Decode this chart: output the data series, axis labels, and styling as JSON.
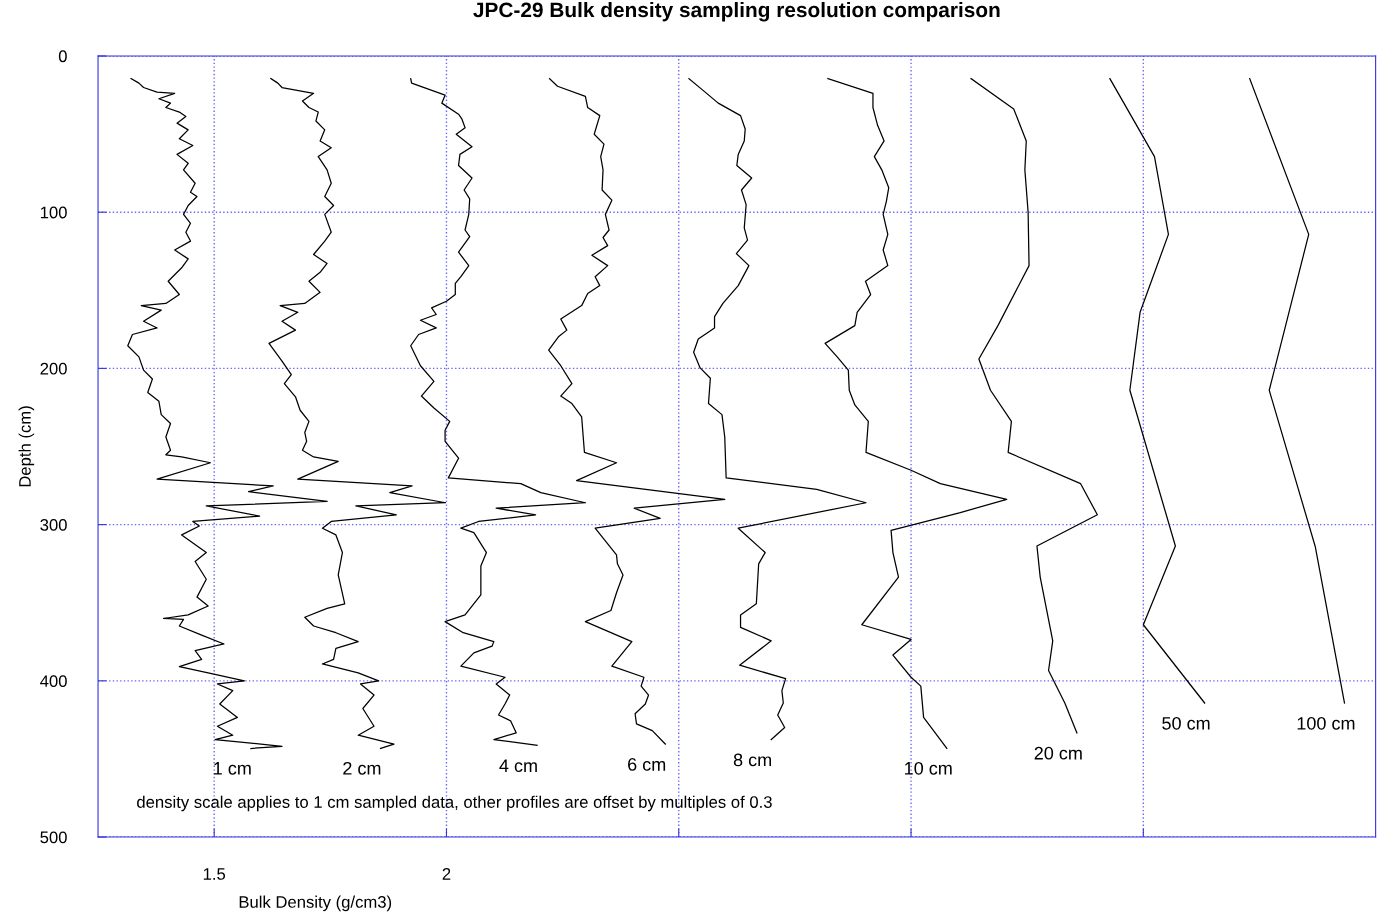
{
  "chart_data": {
    "type": "line",
    "title": "JPC-29 Bulk density sampling resolution comparison",
    "xlabel": "Bulk Density (g/cm3)",
    "ylabel": "Depth (cm)",
    "xlim": [
      1.25,
      4.0
    ],
    "xticks": [
      1.5,
      2,
      {
        "value": 2.5,
        "label": null
      },
      {
        "value": 3,
        "label": null
      },
      {
        "value": 3.5,
        "label": null
      }
    ],
    "ylim": [
      500,
      0
    ],
    "yticks": [
      0,
      100,
      200,
      300,
      400,
      500
    ],
    "grid": true,
    "legend": false,
    "marker": "none",
    "line_style": "solid",
    "annotations": [
      "density scale applies to 1 cm sampled data, other profiles are offset by multiples of 0.3"
    ],
    "series": [
      {
        "name": "1 cm",
        "color": "#000000",
        "x": [
          1.321,
          1.338,
          1.348,
          1.377,
          1.415,
          1.381,
          1.406,
          1.396,
          1.425,
          1.439,
          1.42,
          1.444,
          1.425,
          1.454,
          1.42,
          1.444,
          1.434,
          1.459,
          1.449,
          1.463,
          1.444,
          1.434,
          1.449,
          1.439,
          1.449,
          1.415,
          1.444,
          1.43,
          1.401,
          1.425,
          1.396,
          1.343,
          1.386,
          1.348,
          1.377,
          1.324,
          1.314,
          1.338,
          1.348,
          1.367,
          1.357,
          1.381,
          1.386,
          1.406,
          1.396,
          1.406,
          1.396,
          1.43,
          1.492,
          1.377,
          1.627,
          1.574,
          1.743,
          1.483,
          1.598,
          1.454,
          1.468,
          1.43,
          1.483,
          1.459,
          1.483,
          1.463,
          1.487,
          1.444,
          1.391,
          1.434,
          1.425,
          1.473,
          1.521,
          1.459,
          1.473,
          1.425,
          1.487,
          1.565,
          1.507,
          1.54,
          1.512,
          1.55,
          1.507,
          1.54,
          1.502,
          1.646,
          1.579
        ],
        "values": [
          14.5,
          17.4,
          20.2,
          23.1,
          23.9,
          27.4,
          30.2,
          33.0,
          35.9,
          38.7,
          43.0,
          47.3,
          53.0,
          57.3,
          63.0,
          68.7,
          72.9,
          81.5,
          87.2,
          90.0,
          95.7,
          101.4,
          107.1,
          112.8,
          118.5,
          124.2,
          129.9,
          135.6,
          144.2,
          152.7,
          158.4,
          159.8,
          162.7,
          169.8,
          174.1,
          178.3,
          185.5,
          192.6,
          201.1,
          206.8,
          215.4,
          221.1,
          229.6,
          235.3,
          243.9,
          252.4,
          255.3,
          256.7,
          260.4,
          270.9,
          275.2,
          278.9,
          285.2,
          288.0,
          294.6,
          298.0,
          300.9,
          306.6,
          317.9,
          323.6,
          335.0,
          346.4,
          352.1,
          357.8,
          360.1,
          360.7,
          364.9,
          370.7,
          376.4,
          380.6,
          386.3,
          390.9,
          394.9,
          400.0,
          402.0,
          406.3,
          414.8,
          423.4,
          429.1,
          434.8,
          437.6,
          441.9,
          443.3
        ]
      },
      {
        "name": "2 cm",
        "color": "#000000",
        "x": [
          1.622,
          1.637,
          1.646,
          1.714,
          1.69,
          1.704,
          1.724,
          1.719,
          1.738,
          1.728,
          1.752,
          1.724,
          1.743,
          1.752,
          1.738,
          1.757,
          1.738,
          1.752,
          1.738,
          1.714,
          1.743,
          1.728,
          1.704,
          1.728,
          1.695,
          1.642,
          1.68,
          1.646,
          1.675,
          1.618,
          1.646,
          1.666,
          1.651,
          1.675,
          1.685,
          1.704,
          1.695,
          1.699,
          1.69,
          1.714,
          1.767,
          1.68,
          1.926,
          1.878,
          1.998,
          1.805,
          1.892,
          1.752,
          1.733,
          1.762,
          1.776,
          1.767,
          1.781,
          1.743,
          1.695,
          1.714,
          1.762,
          1.81,
          1.762,
          1.757,
          1.733,
          1.81,
          1.854,
          1.815,
          1.844,
          1.82,
          1.844,
          1.81,
          1.887,
          1.858
        ],
        "values": [
          14.5,
          17.4,
          20.2,
          23.9,
          28.8,
          33.0,
          35.9,
          41.6,
          47.3,
          54.4,
          58.7,
          64.4,
          72.9,
          81.5,
          90.0,
          95.7,
          101.4,
          112.8,
          118.5,
          127.1,
          132.8,
          138.5,
          144.2,
          151.3,
          158.4,
          159.8,
          164.1,
          169.8,
          175.5,
          184.0,
          195.4,
          204.0,
          209.7,
          218.2,
          226.8,
          233.9,
          241.0,
          246.7,
          252.4,
          256.7,
          259.5,
          270.9,
          275.2,
          279.5,
          286.0,
          288.0,
          293.7,
          298.0,
          302.3,
          306.6,
          317.9,
          332.2,
          350.7,
          353.6,
          359.3,
          364.9,
          369.2,
          374.9,
          379.2,
          386.3,
          389.2,
          394.9,
          400.0,
          402.0,
          409.1,
          417.7,
          429.1,
          434.8,
          440.5,
          443.3
        ]
      },
      {
        "name": "4 cm",
        "color": "#000000",
        "x": [
          1.923,
          1.925,
          1.997,
          1.99,
          2.026,
          2.033,
          2.04,
          2.021,
          2.055,
          2.029,
          2.026,
          2.055,
          2.038,
          2.05,
          2.048,
          2.04,
          2.05,
          2.026,
          2.048,
          2.031,
          2.019,
          2.019,
          2.0,
          1.968,
          1.978,
          1.944,
          1.978,
          1.94,
          1.923,
          1.944,
          1.973,
          1.946,
          1.973,
          2.007,
          1.997,
          1.997,
          2.026,
          2.004,
          2.16,
          2.203,
          2.299,
          2.107,
          2.192,
          2.069,
          2.031,
          2.059,
          2.086,
          2.074,
          2.074,
          2.04,
          1.997,
          2.036,
          2.102,
          2.098,
          2.059,
          2.031,
          2.126,
          2.107,
          2.136,
          2.126,
          2.112,
          2.138,
          2.15,
          2.102,
          2.195
        ],
        "values": [
          14.5,
          17.4,
          25.1,
          30.2,
          37.3,
          40.2,
          45.9,
          50.1,
          58.1,
          63.0,
          70.1,
          78.1,
          85.8,
          91.5,
          101.4,
          111.4,
          115.7,
          125.6,
          134.2,
          141.3,
          145.6,
          152.7,
          157.0,
          161.3,
          165.5,
          169.2,
          174.1,
          178.3,
          185.5,
          198.3,
          208.3,
          217.7,
          225.4,
          233.9,
          239.6,
          246.7,
          257.5,
          270.1,
          273.8,
          279.5,
          286.0,
          289.5,
          293.7,
          298.0,
          302.3,
          305.1,
          317.9,
          326.5,
          345.0,
          357.8,
          362.1,
          369.2,
          374.9,
          377.8,
          382.1,
          390.6,
          397.7,
          402.0,
          409.1,
          414.8,
          421.9,
          425.6,
          433.3,
          437.6,
          441.3
        ]
      },
      {
        "name": "6 cm",
        "color": "#000000",
        "x": [
          2.222,
          2.239,
          2.299,
          2.304,
          2.33,
          2.318,
          2.339,
          2.332,
          2.337,
          2.335,
          2.356,
          2.342,
          2.35,
          2.337,
          2.347,
          2.313,
          2.347,
          2.32,
          2.33,
          2.304,
          2.291,
          2.246,
          2.259,
          2.241,
          2.22,
          2.246,
          2.27,
          2.246,
          2.27,
          2.291,
          2.297,
          2.366,
          2.28,
          2.599,
          2.404,
          2.46,
          2.32,
          2.366,
          2.368,
          2.38,
          2.366,
          2.354,
          2.299,
          2.399,
          2.356,
          2.425,
          2.419,
          2.435,
          2.428,
          2.406,
          2.409,
          2.443,
          2.471
        ],
        "values": [
          14.5,
          19.4,
          25.9,
          33.0,
          38.2,
          50.1,
          56.4,
          64.4,
          72.9,
          85.8,
          92.3,
          101.4,
          111.4,
          116.2,
          121.4,
          127.6,
          134.2,
          141.3,
          147.0,
          152.1,
          159.8,
          168.4,
          175.5,
          179.8,
          188.3,
          198.3,
          209.7,
          217.7,
          222.5,
          231.1,
          253.8,
          260.4,
          271.8,
          283.8,
          289.5,
          296.0,
          302.3,
          319.4,
          325.1,
          332.2,
          343.6,
          355.0,
          362.1,
          374.9,
          390.6,
          397.7,
          403.4,
          409.1,
          414.8,
          421.1,
          427.6,
          431.9,
          440.5
        ]
      },
      {
        "name": "8 cm",
        "color": "#000000",
        "x": [
          2.522,
          2.551,
          2.585,
          2.633,
          2.643,
          2.641,
          2.628,
          2.625,
          2.657,
          2.635,
          2.645,
          2.641,
          2.648,
          2.624,
          2.651,
          2.628,
          2.595,
          2.577,
          2.577,
          2.542,
          2.532,
          2.546,
          2.568,
          2.564,
          2.593,
          2.599,
          2.602,
          2.797,
          2.903,
          2.628,
          2.686,
          2.672,
          2.667,
          2.633,
          2.633,
          2.699,
          2.631,
          2.73,
          2.722,
          2.725,
          2.713,
          2.728,
          2.699
        ],
        "values": [
          14.5,
          21.7,
          30.2,
          38.2,
          46.7,
          54.4,
          63.0,
          70.1,
          78.1,
          85.8,
          95.2,
          110.0,
          117.9,
          126.5,
          134.2,
          147.0,
          158.4,
          166.9,
          174.1,
          181.2,
          189.7,
          199.7,
          206.3,
          222.5,
          229.6,
          243.9,
          270.1,
          277.5,
          286.0,
          302.3,
          317.9,
          325.1,
          350.7,
          357.8,
          365.8,
          374.4,
          390.0,
          398.6,
          406.3,
          414.2,
          421.9,
          429.9,
          437.6
        ]
      },
      {
        "name": "10 cm",
        "color": "#000000",
        "x": [
          2.821,
          2.918,
          2.918,
          2.928,
          2.942,
          2.921,
          2.937,
          2.952,
          2.947,
          2.94,
          2.95,
          2.94,
          2.95,
          2.902,
          2.913,
          2.884,
          2.879,
          2.815,
          2.841,
          2.865,
          2.867,
          2.879,
          2.908,
          2.903,
          3.0,
          3.063,
          3.206,
          3.106,
          2.957,
          2.961,
          2.973,
          2.894,
          3.0,
          2.961,
          3.0,
          3.021,
          3.027,
          3.077
        ],
        "values": [
          14.5,
          23.9,
          33.0,
          44.4,
          54.4,
          64.4,
          72.9,
          84.3,
          92.9,
          101.4,
          114.2,
          124.2,
          134.2,
          144.2,
          152.7,
          164.1,
          172.6,
          184.0,
          192.6,
          201.1,
          214.0,
          223.4,
          233.9,
          253.8,
          265.2,
          273.8,
          283.8,
          292.3,
          303.7,
          317.9,
          333.6,
          364.1,
          373.5,
          383.5,
          397.7,
          403.4,
          423.4,
          443.3
        ]
      },
      {
        "name": "20 cm",
        "color": "#000000",
        "x": [
          3.129,
          3.221,
          3.248,
          3.245,
          3.252,
          3.254,
          3.187,
          3.146,
          3.171,
          3.216,
          3.209,
          3.365,
          3.401,
          3.271,
          3.278,
          3.305,
          3.296,
          3.331,
          3.357
        ],
        "values": [
          14.5,
          33.9,
          54.4,
          72.9,
          100.0,
          134.2,
          172.6,
          194.0,
          214.0,
          233.9,
          253.8,
          273.8,
          293.7,
          313.7,
          333.6,
          374.4,
          393.4,
          414.2,
          433.3
        ]
      },
      {
        "name": "50 cm",
        "color": "#000000",
        "x": [
          3.428,
          3.524,
          3.554,
          3.493,
          3.471,
          3.569,
          3.5,
          3.632
        ],
        "values": [
          14.5,
          64.4,
          114.2,
          164.1,
          214.0,
          313.7,
          364.1,
          414.2
        ]
      },
      {
        "name": "100 cm",
        "color": "#000000",
        "x": [
          3.729,
          3.856,
          3.771,
          3.87,
          3.933
        ],
        "values": [
          14.5,
          114.2,
          214.0,
          314.0,
          414.2
        ]
      }
    ]
  }
}
